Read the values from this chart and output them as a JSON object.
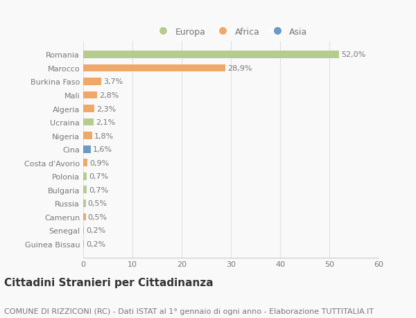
{
  "categories": [
    "Guinea Bissau",
    "Senegal",
    "Camerun",
    "Russia",
    "Bulgaria",
    "Polonia",
    "Costa d'Avorio",
    "Cina",
    "Nigeria",
    "Ucraina",
    "Algeria",
    "Mali",
    "Burkina Faso",
    "Marocco",
    "Romania"
  ],
  "values": [
    0.2,
    0.2,
    0.5,
    0.5,
    0.7,
    0.7,
    0.9,
    1.6,
    1.8,
    2.1,
    2.3,
    2.8,
    3.7,
    28.9,
    52.0
  ],
  "labels": [
    "0,2%",
    "0,2%",
    "0,5%",
    "0,5%",
    "0,7%",
    "0,7%",
    "0,9%",
    "1,6%",
    "1,8%",
    "2,1%",
    "2,3%",
    "2,8%",
    "3,7%",
    "28,9%",
    "52,0%"
  ],
  "colors": [
    "#f0a868",
    "#f0a868",
    "#f0a868",
    "#b5cc8e",
    "#b5cc8e",
    "#b5cc8e",
    "#f0a868",
    "#6b9ac4",
    "#f0a868",
    "#b5cc8e",
    "#f0a868",
    "#f0a868",
    "#f0a868",
    "#f0a868",
    "#b5cc8e"
  ],
  "legend_labels": [
    "Europa",
    "Africa",
    "Asia"
  ],
  "legend_colors": [
    "#b5cc8e",
    "#f0a868",
    "#6b9ac4"
  ],
  "title": "Cittadini Stranieri per Cittadinanza",
  "subtitle": "COMUNE DI RIZZICONI (RC) - Dati ISTAT al 1° gennaio di ogni anno - Elaborazione TUTTITALIA.IT",
  "xlim": [
    0,
    60
  ],
  "xticks": [
    0,
    10,
    20,
    30,
    40,
    50,
    60
  ],
  "background_color": "#f9f9f9",
  "bar_height": 0.55,
  "title_fontsize": 11,
  "subtitle_fontsize": 8,
  "label_fontsize": 8,
  "tick_fontsize": 8,
  "legend_fontsize": 9,
  "text_color": "#777777",
  "title_color": "#333333"
}
